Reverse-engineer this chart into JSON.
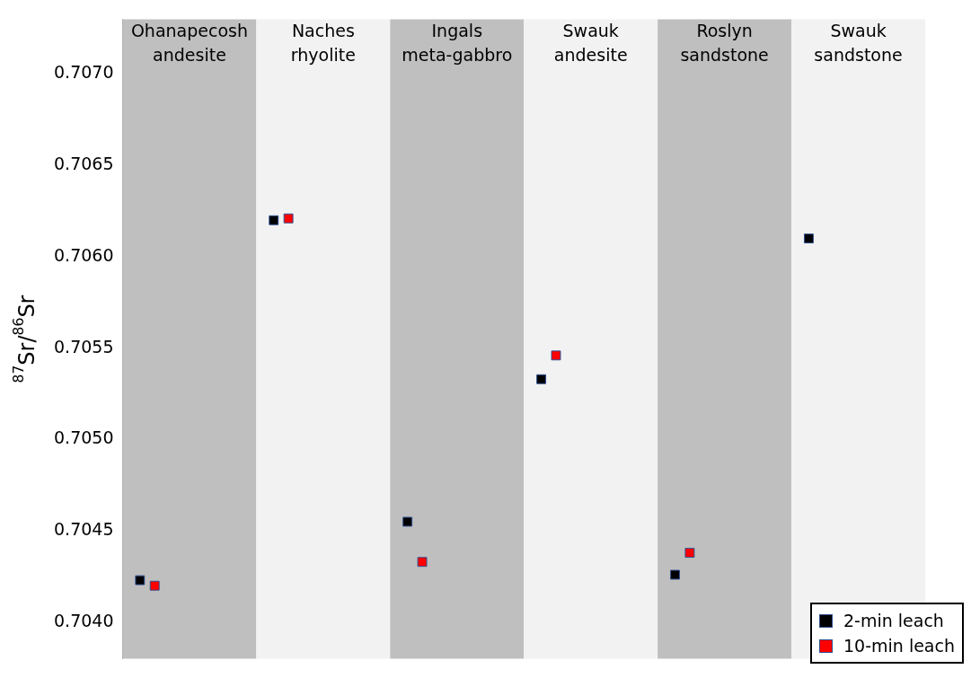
{
  "chart_data": {
    "type": "scatter",
    "ylabel": "$^{87}$Sr/$^{86}$Sr",
    "categories": [
      "Ohanapecosh andesite",
      "Naches rhyolite",
      "Ingals meta-gabbro",
      "Swauk andesite",
      "Roslyn sandstone",
      "Swauk sandstone"
    ],
    "series": [
      {
        "name": "2-min leach",
        "color": "#000000",
        "values": [
          0.70423,
          0.7062,
          0.70455,
          0.70533,
          0.70426,
          0.7061
        ]
      },
      {
        "name": "10-min leach",
        "color": "#ff0000",
        "values": [
          0.7042,
          0.70621,
          0.70433,
          0.70546,
          0.70438,
          null
        ]
      }
    ],
    "ylim": [
      0.7038,
      0.7073
    ],
    "yticks": [
      {
        "value": 0.704,
        "label": "0.7040"
      },
      0.7045,
      {
        "value": 0.705,
        "label": "0.7050"
      },
      0.7055,
      {
        "value": 0.706,
        "label": "0.7060"
      },
      0.7065,
      {
        "value": 0.707,
        "label": "0.7070"
      }
    ],
    "marker": "square",
    "grid": false,
    "legend": "bottom right"
  }
}
